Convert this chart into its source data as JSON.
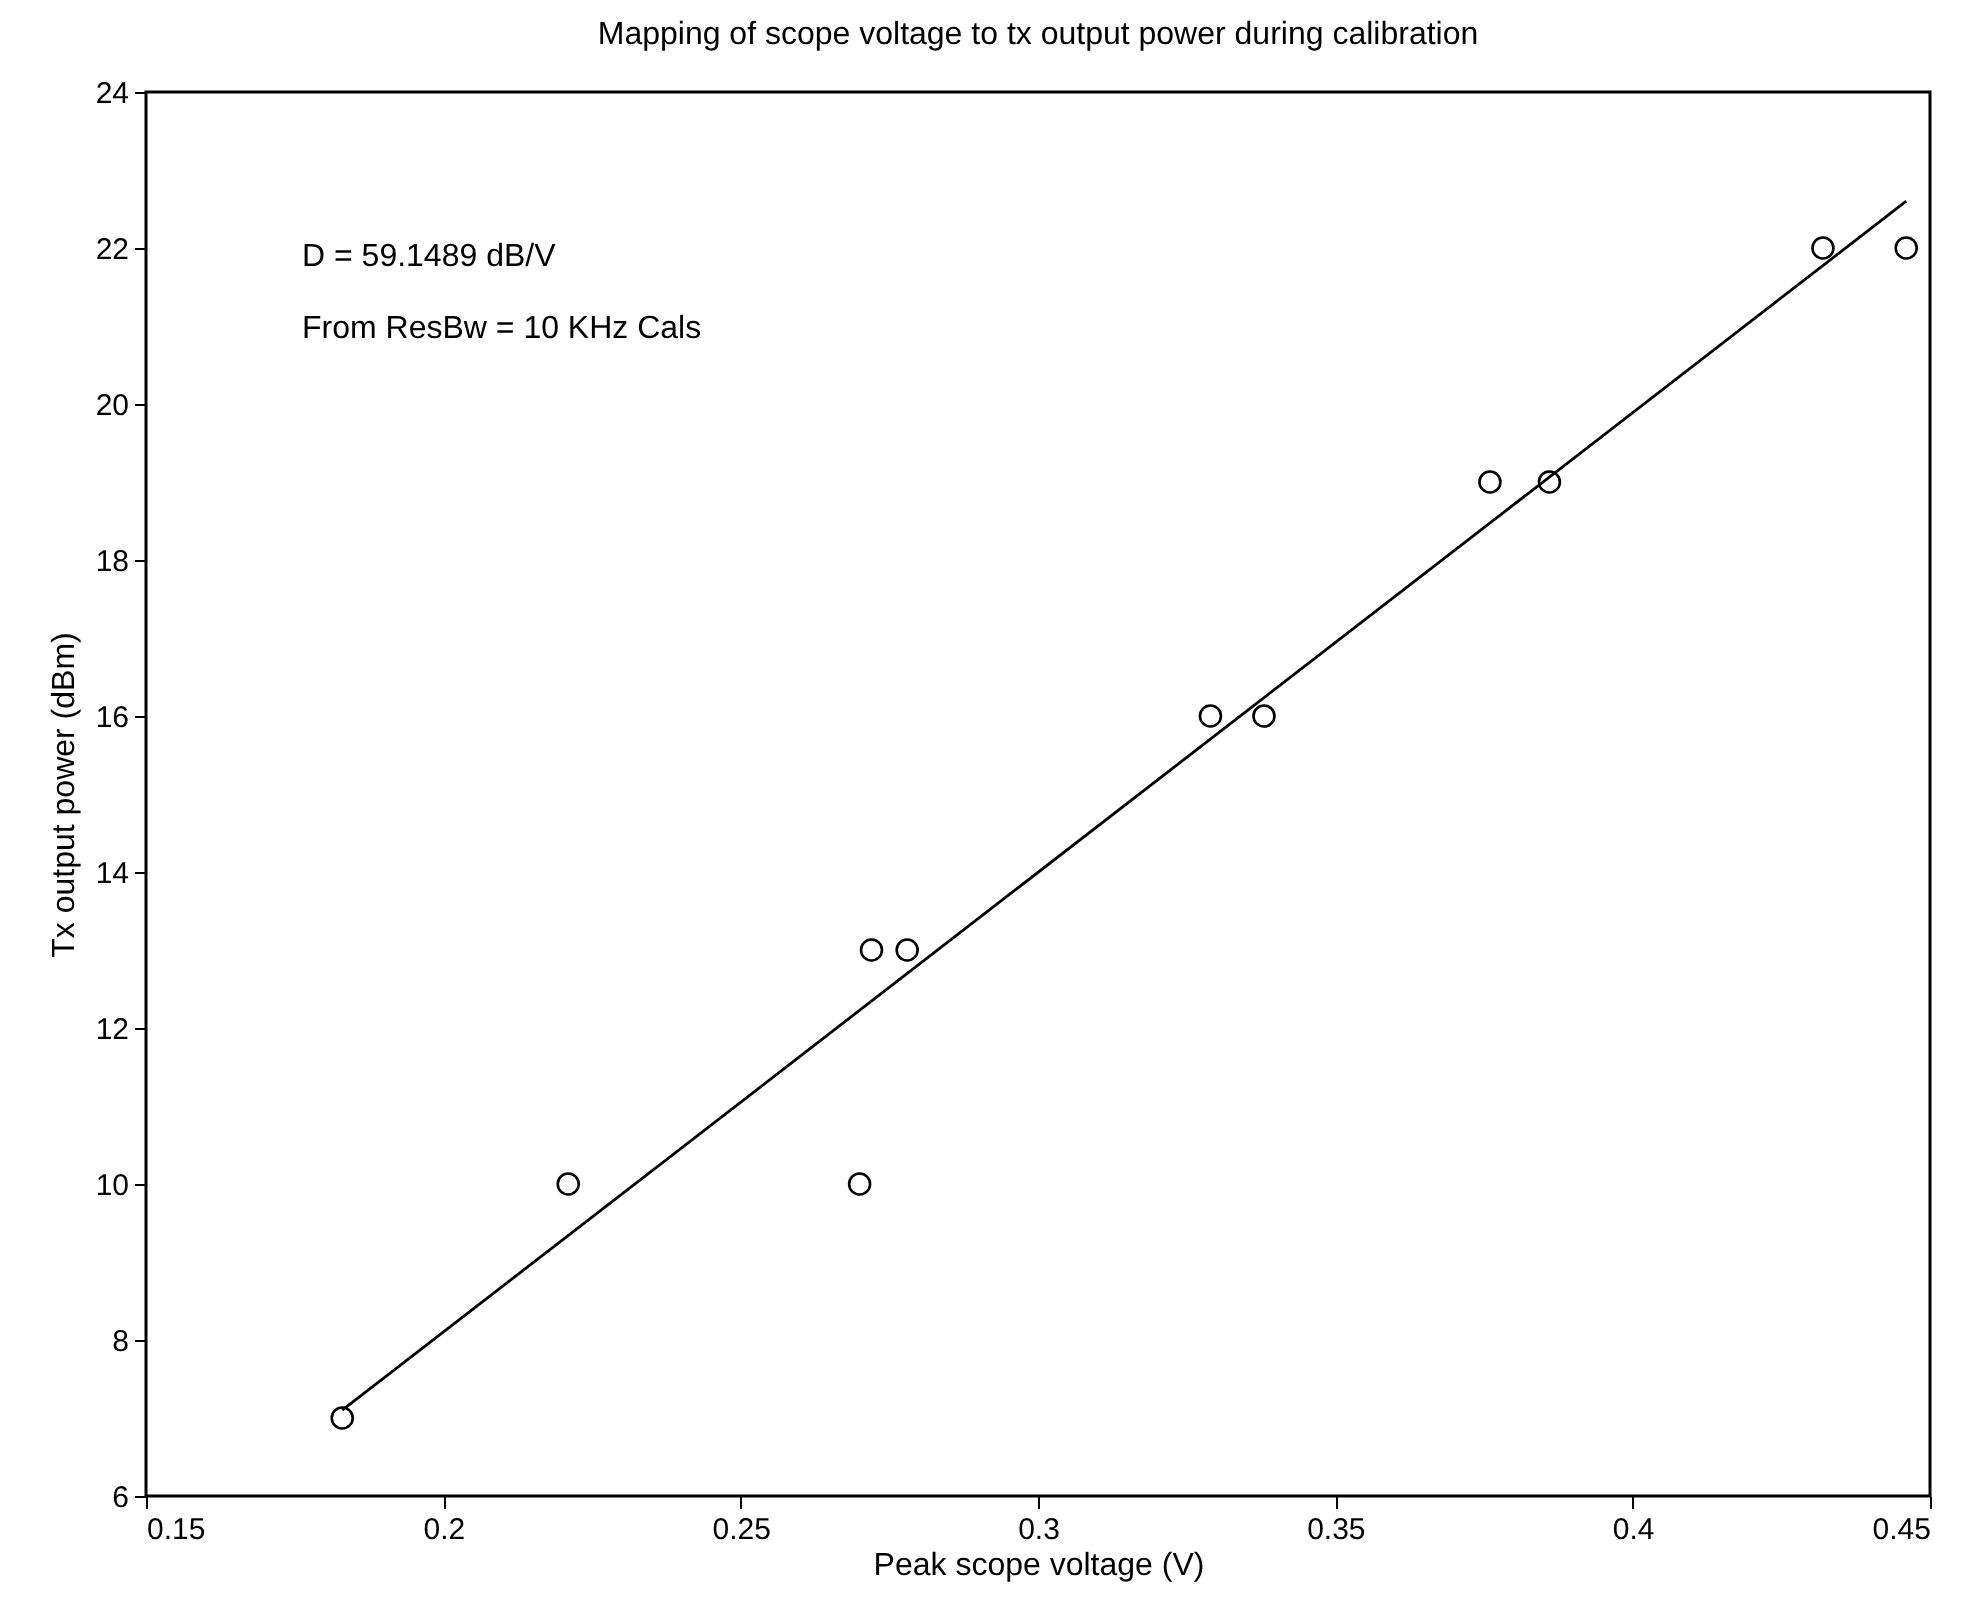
{
  "chart_data": {
    "type": "scatter",
    "title": "Mapping of scope voltage to tx output power during calibration",
    "xlabel": "Peak scope voltage (V)",
    "ylabel": "Tx output power (dBm)",
    "annotations": [
      "D = 59.1489 dB/V",
      "From ResBw = 10 KHz Cals"
    ],
    "xlim": [
      0.15,
      0.45
    ],
    "xticks": [
      0.15,
      0.2,
      0.25,
      0.3,
      0.35,
      0.4,
      0.45
    ],
    "ylim": [
      6,
      24
    ],
    "yticks": [
      6,
      8,
      10,
      12,
      14,
      16,
      18,
      20,
      22,
      24
    ],
    "grid": false,
    "series": [
      {
        "type": "scatter",
        "marker": "circle",
        "color": "#000000",
        "x": [
          0.183,
          0.221,
          0.27,
          0.272,
          0.278,
          0.329,
          0.338,
          0.376,
          0.386,
          0.432,
          0.446
        ],
        "values": [
          7,
          10,
          10,
          13,
          13,
          16,
          16,
          19,
          19,
          22,
          22
        ]
      },
      {
        "type": "line",
        "marker": "none",
        "line_style": "solid",
        "color": "#000000",
        "x": [
          0.183,
          0.446
        ],
        "values": [
          7.1,
          22.6
        ]
      }
    ]
  }
}
